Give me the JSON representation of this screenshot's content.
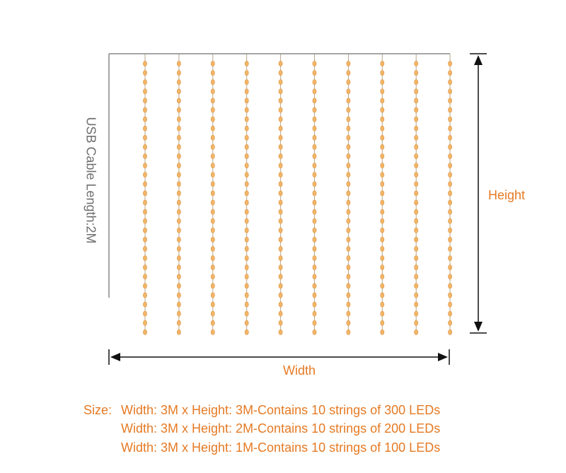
{
  "diagram": {
    "cable_label": "USB Cable Length:2M",
    "height_label": "Height",
    "width_label": "Width"
  },
  "specs": {
    "label": "Size:",
    "lines": [
      "Width: 3M x Height: 3M-Contains 10 strings of 300 LEDs",
      "Width: 3M x Height: 2M-Contains 10 strings of 200 LEDs",
      "Width: 3M x Height: 1M-Contains 10 strings of 100 LEDs"
    ]
  }
}
